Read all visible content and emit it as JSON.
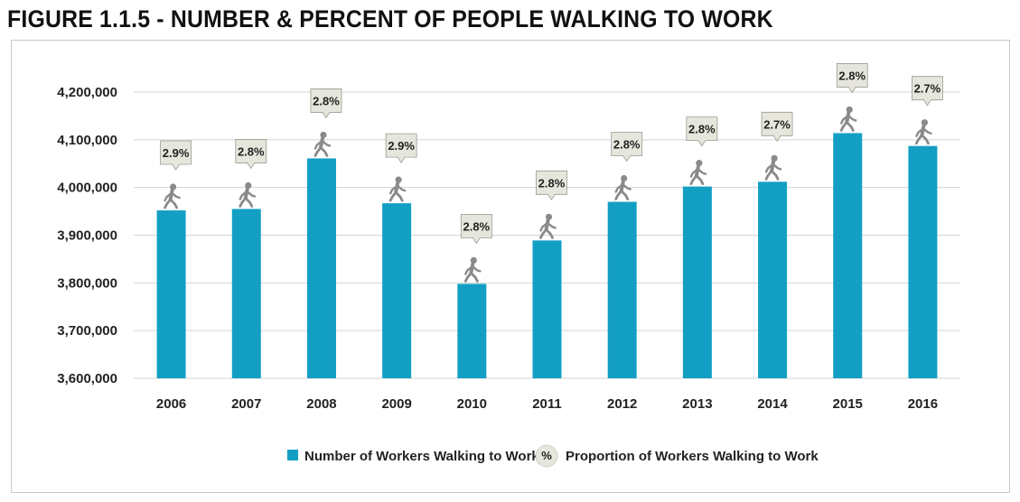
{
  "title": "FIGURE 1.1.5 - NUMBER & PERCENT OF PEOPLE WALKING TO WORK",
  "colors": {
    "bar": "#139fc4",
    "callout_fill": "#e6e6dc",
    "callout_stroke": "#9a9a90",
    "walker": "#8a8a8a",
    "grid": "#d4d4d4"
  },
  "chart_data": {
    "type": "bar",
    "categories": [
      "2006",
      "2007",
      "2008",
      "2009",
      "2010",
      "2011",
      "2012",
      "2013",
      "2014",
      "2015",
      "2016"
    ],
    "series": [
      {
        "name": "Number of Workers Walking to Work",
        "values": [
          3952000,
          3955000,
          4061000,
          3967000,
          3798000,
          3889000,
          3970000,
          4002000,
          4012000,
          4114000,
          4087000
        ]
      },
      {
        "name": "Proportion of Workers Walking to Work",
        "labels": [
          "2.9%",
          "2.8%",
          "2.8%",
          "2.9%",
          "2.8%",
          "2.8%",
          "2.8%",
          "2.8%",
          "2.7%",
          "2.8%",
          "2.7%"
        ]
      }
    ],
    "ylim": [
      3600000,
      4200000
    ],
    "yticks": [
      3600000,
      3700000,
      3800000,
      3900000,
      4000000,
      4100000,
      4200000
    ],
    "ytick_labels": [
      "3,600,000",
      "3,700,000",
      "3,800,000",
      "3,900,000",
      "4,000,000",
      "4,100,000",
      "4,200,000"
    ],
    "grid": true,
    "legend": {
      "position": "bottom",
      "items": [
        {
          "label": "Number of Workers Walking to Work",
          "marker": "square"
        },
        {
          "label": "Proportion of Workers Walking to Work",
          "marker": "%"
        }
      ]
    }
  }
}
